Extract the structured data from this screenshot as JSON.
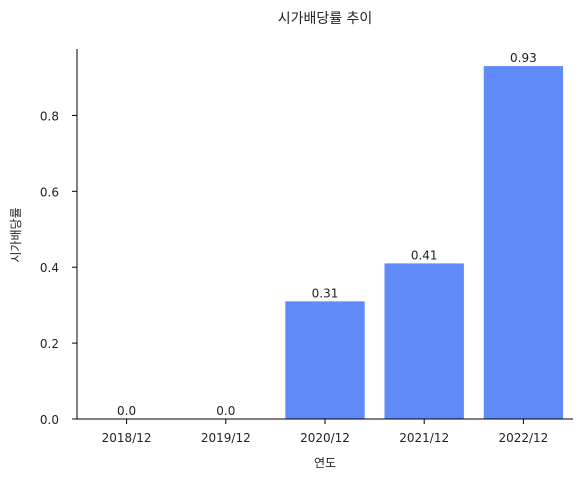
{
  "chart_data": {
    "type": "bar",
    "title": "시가배당률 추이",
    "xlabel": "연도",
    "ylabel": "시가배당률",
    "categories": [
      "2018/12",
      "2019/12",
      "2020/12",
      "2021/12",
      "2022/12"
    ],
    "values": [
      0.0,
      0.0,
      0.31,
      0.41,
      0.93
    ],
    "data_labels": [
      "0.0",
      "0.0",
      "0.31",
      "0.41",
      "0.93"
    ],
    "yticks": [
      "0.0",
      "0.2",
      "0.4",
      "0.6",
      "0.8"
    ],
    "ylim": [
      0,
      0.975
    ],
    "grid": false,
    "bar_color": "#5f8af7"
  }
}
